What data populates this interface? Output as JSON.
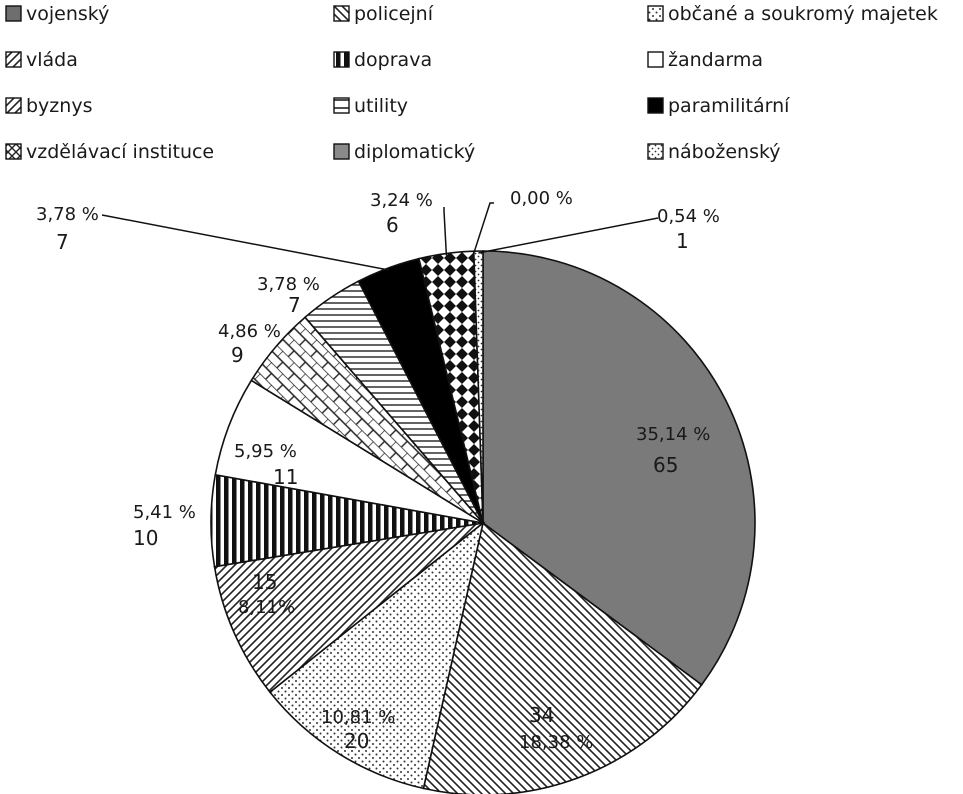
{
  "chart_data": {
    "type": "pie",
    "legend_position": "top",
    "categories": [
      "vojenský",
      "policejní",
      "občané a soukromý majetek",
      "vláda",
      "doprava",
      "žandarma",
      "byznys",
      "utility",
      "paramilitární",
      "vzdělávací instituce",
      "diplomatický",
      "náboženský"
    ],
    "values": [
      65,
      34,
      20,
      15,
      10,
      11,
      9,
      7,
      7,
      6,
      0,
      1
    ],
    "percent_labels": [
      "35,14 %",
      "18,38 %",
      "10,81 %",
      "8,11%",
      "5,41 %",
      "5,95 %",
      "4,86 %",
      "3,78 %",
      "3,78 %",
      "3,24 %",
      "0,00 %",
      "0,54 %"
    ],
    "slice_patterns": [
      "solid-gray",
      "diagonal-back",
      "dots",
      "diagonal-fwd",
      "vertical-stripes",
      "white",
      "brick",
      "horizontal-lines",
      "solid-black",
      "diamonds",
      "solid-gray-light",
      "fine-dots"
    ]
  }
}
